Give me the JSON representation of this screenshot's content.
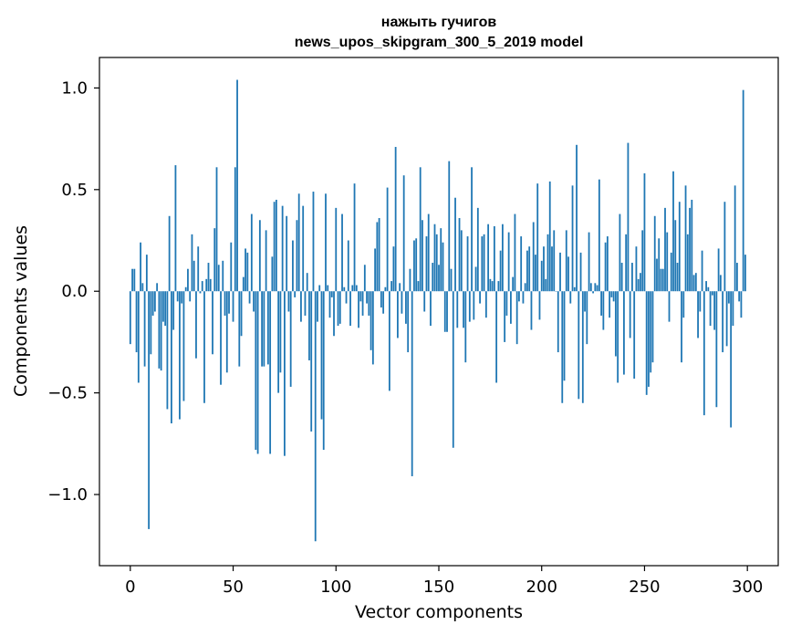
{
  "chart_data": {
    "type": "bar",
    "title": "нажыть гучигов",
    "subtitle": "news_upos_skipgram_300_5_2019 model",
    "xlabel": "Vector components",
    "ylabel": "Components values",
    "xlim": [
      -15,
      315
    ],
    "ylim": [
      -1.35,
      1.15
    ],
    "xticks": [
      0,
      50,
      100,
      150,
      200,
      250,
      300
    ],
    "yticks": [
      -1.0,
      -0.5,
      0.0,
      0.5,
      1.0
    ],
    "xtick_labels": [
      "0",
      "50",
      "100",
      "150",
      "200",
      "250",
      "300"
    ],
    "ytick_labels": [
      "−1.0",
      "−0.5",
      "0.0",
      "0.5",
      "1.0"
    ],
    "grid": false,
    "bar_color": "#1f77b4",
    "values": [
      -0.26,
      0.11,
      0.11,
      -0.3,
      -0.45,
      0.24,
      0.04,
      -0.37,
      0.18,
      -1.17,
      -0.31,
      -0.12,
      -0.1,
      0.04,
      -0.38,
      -0.39,
      -0.15,
      -0.17,
      -0.58,
      0.37,
      -0.65,
      -0.19,
      0.62,
      -0.05,
      -0.63,
      -0.06,
      -0.54,
      0.02,
      0.11,
      -0.05,
      0.28,
      0.15,
      -0.33,
      0.22,
      -0.01,
      0.05,
      -0.55,
      0.06,
      0.14,
      0.06,
      -0.31,
      0.31,
      0.61,
      0.13,
      -0.46,
      0.15,
      -0.12,
      -0.4,
      -0.11,
      0.24,
      -0.15,
      0.61,
      1.04,
      -0.37,
      -0.22,
      0.07,
      0.21,
      0.19,
      -0.06,
      0.38,
      -0.1,
      -0.78,
      -0.8,
      0.35,
      -0.37,
      -0.37,
      0.3,
      -0.36,
      -0.8,
      0.17,
      0.44,
      0.45,
      -0.5,
      -0.4,
      0.42,
      -0.81,
      0.37,
      -0.1,
      -0.47,
      0.25,
      -0.03,
      0.35,
      0.48,
      -0.15,
      0.42,
      -0.12,
      0.09,
      -0.34,
      -0.69,
      0.49,
      -1.23,
      -0.15,
      0.03,
      -0.63,
      -0.78,
      0.48,
      0.03,
      -0.13,
      -0.03,
      -0.22,
      0.41,
      -0.17,
      -0.16,
      0.38,
      0.02,
      -0.06,
      0.25,
      -0.17,
      0.03,
      0.53,
      0.03,
      -0.18,
      -0.05,
      -0.12,
      0.13,
      -0.06,
      -0.12,
      -0.29,
      -0.36,
      0.21,
      0.34,
      0.36,
      -0.08,
      -0.11,
      0.02,
      0.51,
      -0.49,
      0.05,
      0.22,
      0.71,
      -0.23,
      0.04,
      -0.11,
      0.57,
      -0.16,
      -0.3,
      0.11,
      -0.91,
      0.25,
      0.26,
      0.05,
      0.61,
      0.35,
      -0.1,
      0.27,
      0.38,
      -0.17,
      0.14,
      0.33,
      0.28,
      0.13,
      0.31,
      0.24,
      -0.2,
      -0.2,
      0.64,
      0.11,
      -0.77,
      0.46,
      -0.18,
      0.36,
      0.3,
      -0.18,
      -0.35,
      0.27,
      -0.15,
      0.61,
      -0.14,
      0.12,
      0.41,
      -0.06,
      0.27,
      0.28,
      -0.13,
      0.33,
      0.06,
      0.05,
      0.32,
      -0.45,
      0.05,
      0.2,
      0.33,
      -0.25,
      -0.12,
      0.29,
      -0.16,
      0.07,
      0.38,
      -0.26,
      -0.05,
      0.27,
      -0.06,
      0.04,
      0.2,
      0.22,
      -0.19,
      0.34,
      0.18,
      0.53,
      -0.14,
      0.15,
      0.22,
      0.06,
      0.28,
      0.54,
      0.22,
      0.3,
      0.0,
      -0.3,
      0.19,
      -0.55,
      -0.44,
      0.3,
      0.17,
      -0.06,
      0.52,
      0.02,
      0.72,
      -0.53,
      0.19,
      -0.55,
      -0.1,
      -0.26,
      0.29,
      0.04,
      -0.01,
      0.04,
      0.03,
      0.55,
      -0.12,
      -0.19,
      0.24,
      0.27,
      -0.13,
      -0.03,
      -0.05,
      -0.32,
      -0.45,
      0.38,
      0.14,
      -0.41,
      0.28,
      0.73,
      -0.23,
      0.14,
      -0.43,
      0.22,
      0.06,
      0.09,
      0.3,
      0.58,
      -0.51,
      -0.47,
      -0.4,
      -0.35,
      0.37,
      0.16,
      0.26,
      0.11,
      0.11,
      0.41,
      0.29,
      -0.15,
      0.19,
      0.59,
      0.35,
      0.14,
      0.44,
      -0.35,
      -0.13,
      0.52,
      0.28,
      0.41,
      0.45,
      0.08,
      0.09,
      -0.23,
      -0.1,
      0.2,
      -0.61,
      0.05,
      0.02,
      -0.17,
      -0.02,
      -0.19,
      -0.57,
      0.21,
      0.08,
      -0.3,
      0.44,
      -0.27,
      -0.06,
      -0.67,
      -0.17,
      0.52,
      0.14,
      -0.05,
      -0.13,
      0.99,
      0.18
    ]
  }
}
